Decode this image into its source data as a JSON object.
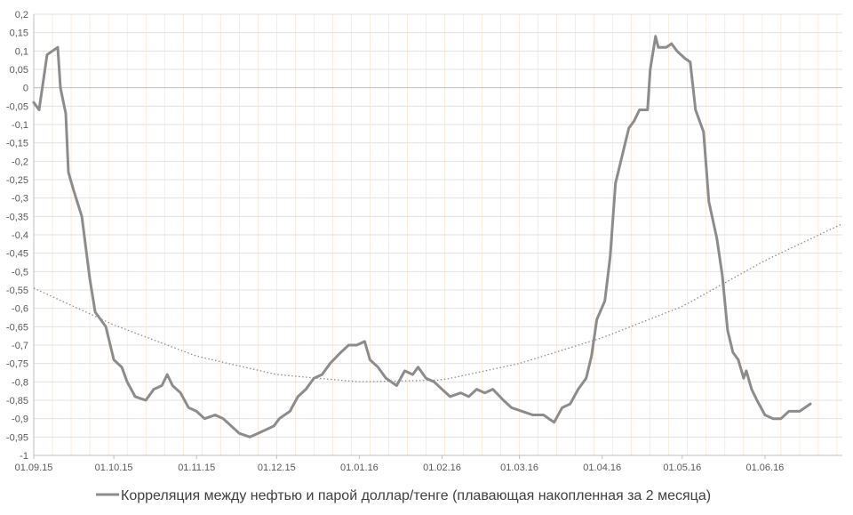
{
  "chart_data": {
    "type": "line",
    "title": "",
    "xlabel": "",
    "ylabel": "",
    "ylim": [
      -1,
      0.2
    ],
    "y_ticks": [
      0.2,
      0.15,
      0.1,
      0.05,
      0,
      -0.05,
      -0.1,
      -0.15,
      -0.2,
      -0.25,
      -0.3,
      -0.35,
      -0.4,
      -0.45,
      -0.5,
      -0.55,
      -0.6,
      -0.65,
      -0.7,
      -0.75,
      -0.8,
      -0.85,
      -0.9,
      -0.95,
      -1
    ],
    "y_tick_labels": [
      "0,2",
      "0,15",
      "0,1",
      "0,05",
      "0",
      "-0,05",
      "-0,1",
      "-0,15",
      "-0,2",
      "-0,25",
      "-0,3",
      "-0,35",
      "-0,4",
      "-0,45",
      "-0,5",
      "-0,55",
      "-0,6",
      "-0,65",
      "-0,7",
      "-0,75",
      "-0,8",
      "-0,85",
      "-0,9",
      "-0,95",
      "-1"
    ],
    "x_range": [
      "2015-09-01",
      "2016-06-30"
    ],
    "x_ticks": [
      "2015-09-01",
      "2015-10-01",
      "2015-11-01",
      "2015-12-01",
      "2016-01-01",
      "2016-02-01",
      "2016-03-01",
      "2016-04-01",
      "2016-05-01",
      "2016-06-01"
    ],
    "x_tick_labels": [
      "01.09.15",
      "01.10.15",
      "01.11.15",
      "01.12.15",
      "01.01.16",
      "01.02.16",
      "01.03.16",
      "01.04.16",
      "01.05.16",
      "01.06.16"
    ],
    "grid": true,
    "legend_position": "bottom",
    "colors": {
      "series": "#8c8c8c",
      "trend": "#8c8c8c",
      "grid": "#e3e3e3",
      "grid_zero": "#bfbfbf",
      "minor_grid": "#f5d9b8"
    },
    "series": [
      {
        "name": "Корреляция между нефтью и парой доллар/тенге (плавающая накопленная за 2 месяца)",
        "points": [
          [
            "2015-09-01",
            -0.04
          ],
          [
            "2015-09-03",
            -0.06
          ],
          [
            "2015-09-06",
            0.09
          ],
          [
            "2015-09-08",
            0.1
          ],
          [
            "2015-09-10",
            0.11
          ],
          [
            "2015-09-11",
            0.0
          ],
          [
            "2015-09-13",
            -0.07
          ],
          [
            "2015-09-14",
            -0.23
          ],
          [
            "2015-09-16",
            -0.28
          ],
          [
            "2015-09-19",
            -0.35
          ],
          [
            "2015-09-22",
            -0.52
          ],
          [
            "2015-09-24",
            -0.61
          ],
          [
            "2015-09-28",
            -0.65
          ],
          [
            "2015-10-01",
            -0.74
          ],
          [
            "2015-10-04",
            -0.76
          ],
          [
            "2015-10-06",
            -0.8
          ],
          [
            "2015-10-09",
            -0.84
          ],
          [
            "2015-10-13",
            -0.85
          ],
          [
            "2015-10-16",
            -0.82
          ],
          [
            "2015-10-19",
            -0.81
          ],
          [
            "2015-10-21",
            -0.78
          ],
          [
            "2015-10-23",
            -0.81
          ],
          [
            "2015-10-26",
            -0.83
          ],
          [
            "2015-10-29",
            -0.87
          ],
          [
            "2015-11-01",
            -0.88
          ],
          [
            "2015-11-04",
            -0.9
          ],
          [
            "2015-11-08",
            -0.89
          ],
          [
            "2015-11-11",
            -0.9
          ],
          [
            "2015-11-14",
            -0.92
          ],
          [
            "2015-11-17",
            -0.94
          ],
          [
            "2015-11-21",
            -0.95
          ],
          [
            "2015-11-24",
            -0.94
          ],
          [
            "2015-11-27",
            -0.93
          ],
          [
            "2015-11-30",
            -0.92
          ],
          [
            "2015-12-02",
            -0.9
          ],
          [
            "2015-12-06",
            -0.88
          ],
          [
            "2015-12-09",
            -0.84
          ],
          [
            "2015-12-12",
            -0.82
          ],
          [
            "2015-12-15",
            -0.79
          ],
          [
            "2015-12-18",
            -0.78
          ],
          [
            "2015-12-21",
            -0.75
          ],
          [
            "2015-12-25",
            -0.72
          ],
          [
            "2015-12-28",
            -0.7
          ],
          [
            "2015-12-31",
            -0.7
          ],
          [
            "2016-01-03",
            -0.69
          ],
          [
            "2016-01-05",
            -0.74
          ],
          [
            "2016-01-08",
            -0.76
          ],
          [
            "2016-01-11",
            -0.79
          ],
          [
            "2016-01-15",
            -0.81
          ],
          [
            "2016-01-18",
            -0.77
          ],
          [
            "2016-01-21",
            -0.78
          ],
          [
            "2016-01-23",
            -0.76
          ],
          [
            "2016-01-26",
            -0.79
          ],
          [
            "2016-01-29",
            -0.8
          ],
          [
            "2016-02-01",
            -0.82
          ],
          [
            "2016-02-04",
            -0.84
          ],
          [
            "2016-02-08",
            -0.83
          ],
          [
            "2016-02-11",
            -0.84
          ],
          [
            "2016-02-14",
            -0.82
          ],
          [
            "2016-02-17",
            -0.83
          ],
          [
            "2016-02-20",
            -0.82
          ],
          [
            "2016-02-24",
            -0.85
          ],
          [
            "2016-02-27",
            -0.87
          ],
          [
            "2016-03-02",
            -0.88
          ],
          [
            "2016-03-06",
            -0.89
          ],
          [
            "2016-03-10",
            -0.89
          ],
          [
            "2016-03-14",
            -0.91
          ],
          [
            "2016-03-17",
            -0.87
          ],
          [
            "2016-03-20",
            -0.86
          ],
          [
            "2016-03-23",
            -0.82
          ],
          [
            "2016-03-26",
            -0.79
          ],
          [
            "2016-03-28",
            -0.73
          ],
          [
            "2016-03-30",
            -0.63
          ],
          [
            "2016-04-02",
            -0.58
          ],
          [
            "2016-04-04",
            -0.46
          ],
          [
            "2016-04-06",
            -0.26
          ],
          [
            "2016-04-09",
            -0.17
          ],
          [
            "2016-04-11",
            -0.11
          ],
          [
            "2016-04-13",
            -0.09
          ],
          [
            "2016-04-15",
            -0.06
          ],
          [
            "2016-04-18",
            -0.06
          ],
          [
            "2016-04-19",
            0.05
          ],
          [
            "2016-04-21",
            0.14
          ],
          [
            "2016-04-22",
            0.11
          ],
          [
            "2016-04-25",
            0.11
          ],
          [
            "2016-04-27",
            0.12
          ],
          [
            "2016-04-29",
            0.1
          ],
          [
            "2016-05-02",
            0.08
          ],
          [
            "2016-05-04",
            0.07
          ],
          [
            "2016-05-06",
            -0.06
          ],
          [
            "2016-05-09",
            -0.12
          ],
          [
            "2016-05-11",
            -0.31
          ],
          [
            "2016-05-14",
            -0.41
          ],
          [
            "2016-05-16",
            -0.51
          ],
          [
            "2016-05-18",
            -0.66
          ],
          [
            "2016-05-20",
            -0.72
          ],
          [
            "2016-05-22",
            -0.74
          ],
          [
            "2016-05-24",
            -0.79
          ],
          [
            "2016-05-25",
            -0.77
          ],
          [
            "2016-05-27",
            -0.82
          ],
          [
            "2016-05-29",
            -0.85
          ],
          [
            "2016-06-01",
            -0.89
          ],
          [
            "2016-06-04",
            -0.9
          ],
          [
            "2016-06-07",
            -0.9
          ],
          [
            "2016-06-10",
            -0.88
          ],
          [
            "2016-06-14",
            -0.88
          ],
          [
            "2016-06-16",
            -0.87
          ],
          [
            "2016-06-18",
            -0.86
          ]
        ]
      },
      {
        "type": "trend",
        "points": [
          [
            "2015-09-01",
            -0.545
          ],
          [
            "2015-10-01",
            -0.645
          ],
          [
            "2015-11-01",
            -0.73
          ],
          [
            "2015-12-01",
            -0.78
          ],
          [
            "2016-01-01",
            -0.8
          ],
          [
            "2016-02-01",
            -0.795
          ],
          [
            "2016-03-01",
            -0.75
          ],
          [
            "2016-04-01",
            -0.68
          ],
          [
            "2016-05-01",
            -0.595
          ],
          [
            "2016-06-01",
            -0.47
          ],
          [
            "2016-06-30",
            -0.37
          ]
        ]
      }
    ]
  }
}
